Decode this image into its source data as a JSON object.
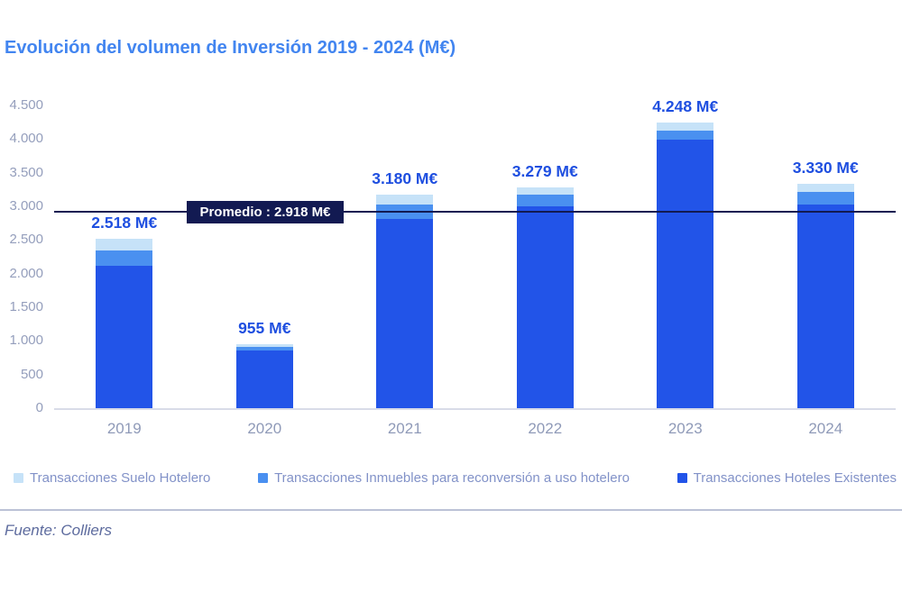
{
  "title": "Evolución del volumen de Inversión 2019 - 2024 (M€)",
  "source": "Fuente: Colliers",
  "colors": {
    "title_blue": "#4285f0",
    "value_label_blue": "#1f4fe0",
    "bar_dark_blue": "#2254e8",
    "bar_medium_blue": "#4a90f0",
    "bar_light_blue": "#c6e2f8",
    "axis_text": "#949ebc",
    "legend_text": "#8292c8",
    "average_navy": "#121a52",
    "axis_line_gray": "#d9dce8"
  },
  "chart_data": {
    "type": "bar",
    "stacked": true,
    "title": "Evolución del volumen de Inversión 2019 - 2024 (M€)",
    "xlabel": "",
    "ylabel": "",
    "ylim": [
      0,
      4500
    ],
    "grid": false,
    "legend_position": "bottom",
    "categories": [
      "2019",
      "2020",
      "2021",
      "2022",
      "2023",
      "2024"
    ],
    "series": [
      {
        "name": "Transacciones Suelo Hotelero",
        "color": "#c6e2f8",
        "values": [
          175,
          45,
          160,
          110,
          120,
          120
        ]
      },
      {
        "name": "Transacciones Inmuebles para reconversión a uso hotelero",
        "color": "#4a90f0",
        "values": [
          230,
          50,
          205,
          175,
          135,
          185
        ]
      },
      {
        "name": "Transacciones Hoteles Existentes",
        "color": "#2254e8",
        "values": [
          2113,
          860,
          2815,
          2994,
          3993,
          3025
        ]
      }
    ],
    "stack_order_bottom_to_top": [
      "Transacciones Hoteles Existentes",
      "Transacciones Inmuebles para reconversión a uso hotelero",
      "Transacciones Suelo Hotelero"
    ],
    "totals": [
      2518,
      955,
      3180,
      3279,
      4248,
      3330
    ],
    "total_labels": [
      "2.518 M€",
      "955 M€",
      "3.180 M€",
      "3.279 M€",
      "4.248 M€",
      "3.330 M€"
    ],
    "average": {
      "value": 2918,
      "label": "Promedio : 2.918 M€"
    },
    "y_tick_values": [
      4500,
      4000,
      3500,
      3000,
      2500,
      2000,
      1500,
      1000,
      500,
      0
    ],
    "y_tick_labels": [
      "4.500",
      "4.000",
      "3.500",
      "3.000",
      "2.500",
      "2.000",
      "1.500",
      "1.000",
      "500",
      "0"
    ]
  }
}
